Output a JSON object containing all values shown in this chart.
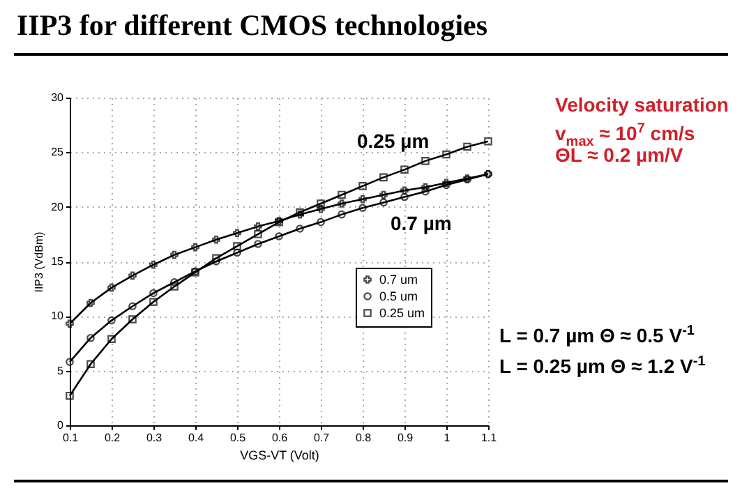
{
  "chart_data": {
    "type": "line",
    "title": "IIP3 for different CMOS technologies",
    "xlabel": "VGS-VT (Volt)",
    "ylabel": "IIP3 (VdBm)",
    "x": [
      0.1,
      0.15,
      0.2,
      0.25,
      0.3,
      0.35,
      0.4,
      0.45,
      0.5,
      0.55,
      0.6,
      0.65,
      0.7,
      0.75,
      0.8,
      0.85,
      0.9,
      0.95,
      1.0,
      1.05,
      1.1
    ],
    "series": [
      {
        "name": "0.7 um",
        "color": "#000000",
        "marker": "cross",
        "values": [
          9.3,
          11.2,
          12.6,
          13.7,
          14.7,
          15.6,
          16.3,
          17.0,
          17.6,
          18.2,
          18.7,
          19.3,
          19.8,
          20.3,
          20.7,
          21.1,
          21.5,
          21.8,
          22.2,
          22.6,
          23.0
        ]
      },
      {
        "name": "0.5 um",
        "color": "#000000",
        "marker": "circle",
        "values": [
          5.8,
          8.0,
          9.6,
          10.9,
          12.1,
          13.1,
          14.1,
          15.0,
          15.8,
          16.6,
          17.3,
          18.0,
          18.6,
          19.3,
          19.9,
          20.4,
          20.9,
          21.4,
          22.0,
          22.5,
          23.0
        ]
      },
      {
        "name": "0.25 um",
        "color": "#000000",
        "marker": "square",
        "values": [
          2.7,
          5.6,
          7.9,
          9.7,
          11.3,
          12.7,
          14.0,
          15.3,
          16.4,
          17.5,
          18.6,
          19.5,
          20.3,
          21.1,
          21.9,
          22.7,
          23.4,
          24.2,
          24.8,
          25.5,
          26.0
        ]
      }
    ],
    "xlim": [
      0.1,
      1.1
    ],
    "xticks": [
      0.1,
      0.2,
      0.3,
      0.4,
      0.5,
      0.6,
      0.7,
      0.8,
      0.9,
      1,
      1.1
    ],
    "ylim": [
      0,
      30
    ],
    "yticks": [
      0,
      5,
      10,
      15,
      20,
      25,
      30
    ],
    "grid": true,
    "legend": "right",
    "line_style": "solid",
    "annotations": [
      "0.25 µm",
      "0.7 µm",
      "Velocity saturation",
      "v$_{max}$ ≈ 10$^{7}$ cm/s",
      "ΘL ≈ 0.2 µm/V",
      "L = 0.7 µm  Θ ≈ 0.5 V$^{-1}$",
      "L = 0.25 µm Θ ≈ 1.2 V$^{-1}$"
    ]
  }
}
